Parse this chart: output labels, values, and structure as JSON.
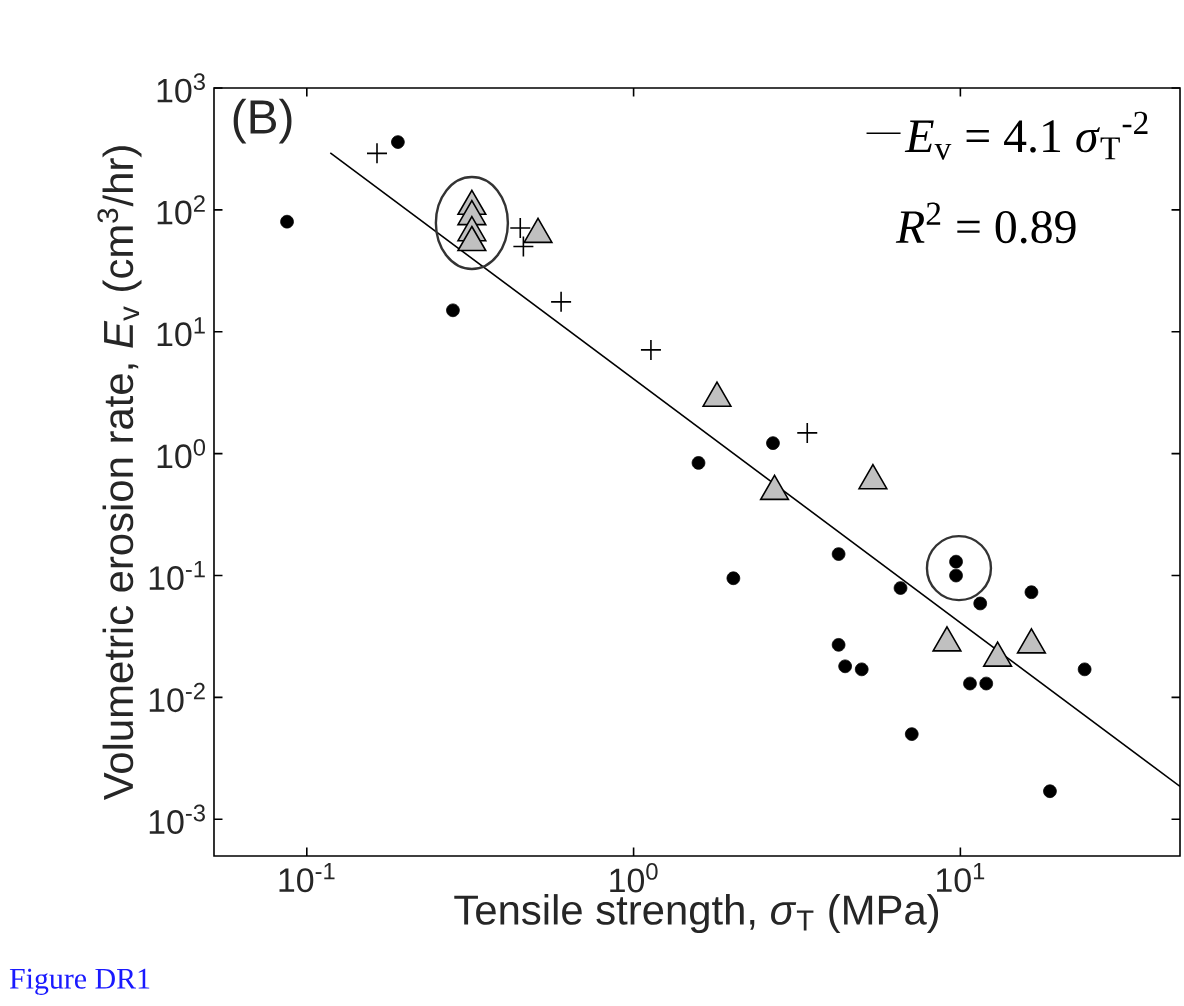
{
  "chart_data": {
    "type": "scatter",
    "xlabel": "Tensile strength, *σ*$_{T}$ (MPa)",
    "ylabel": "Volumetric erosion rate, *E*$_{v}$ (cm$^{3}$/hr)",
    "annotations": [
      "(B)",
      "*R*$^{2}$ = 0.89",
      "Figure DR1"
    ],
    "log": "xy",
    "xlim": [
      0.052,
      47
    ],
    "ylim": [
      0.0005,
      1000
    ],
    "xticks": [
      {
        "value": 0.1,
        "label": "10$^{-1}$"
      },
      {
        "value": 1,
        "label": "10$^{0}$"
      },
      {
        "value": 10,
        "label": "10$^{1}$"
      }
    ],
    "yticks": [
      {
        "value": 0.001,
        "label": "10$^{-3}$"
      },
      {
        "value": 0.01,
        "label": "10$^{-2}$"
      },
      {
        "value": 0.1,
        "label": "10$^{-1}$"
      },
      {
        "value": 1,
        "label": "10$^{0}$"
      },
      {
        "value": 10,
        "label": "10$^{1}$"
      },
      {
        "value": 100,
        "label": "10$^{2}$"
      },
      {
        "value": 1000,
        "label": "10$^{3}$"
      }
    ],
    "legend": "top right",
    "series": [
      {
        "marker": "circle",
        "color": "#000000",
        "x": [
          0.087,
          0.19,
          0.28,
          1.58,
          2.67,
          2.02,
          4.24,
          6.56,
          9.7,
          9.7,
          11.5,
          16.5,
          4.24,
          4.44,
          4.99,
          10.7,
          12,
          23.8,
          24,
          7.1,
          18.8
        ],
        "values": [
          80,
          360,
          15,
          0.84,
          1.22,
          0.095,
          0.15,
          0.079,
          0.13,
          0.1,
          0.059,
          0.073,
          0.027,
          0.018,
          0.017,
          0.013,
          0.013,
          null,
          0.017,
          0.005,
          0.0017
        ]
      },
      {
        "marker": "cross",
        "color": "#000000",
        "x": [
          0.164,
          0.45,
          0.46,
          0.6,
          1.13,
          3.4
        ],
        "values": [
          291,
          71,
          50,
          17.6,
          7.1,
          1.48
        ]
      },
      {
        "marker": "triangle",
        "color": "#c0c0c0",
        "x": [
          0.32,
          0.32,
          0.32,
          0.32,
          0.51,
          1.8,
          2.7,
          5.4,
          9.1,
          13,
          16.5
        ],
        "values": [
          107,
          88,
          65,
          54,
          63,
          2.85,
          0.49,
          0.6,
          0.028,
          0.021,
          0.027
        ]
      },
      {
        "type": "line",
        "name": "*E*$_{v}$ = 4.1 *σ*$_{T}$$^{-2}$",
        "color": "#000000",
        "marker": "none",
        "line_style": "solid",
        "x": [
          0.118,
          47
        ],
        "values": [
          294,
          0.00186
        ]
      }
    ]
  }
}
